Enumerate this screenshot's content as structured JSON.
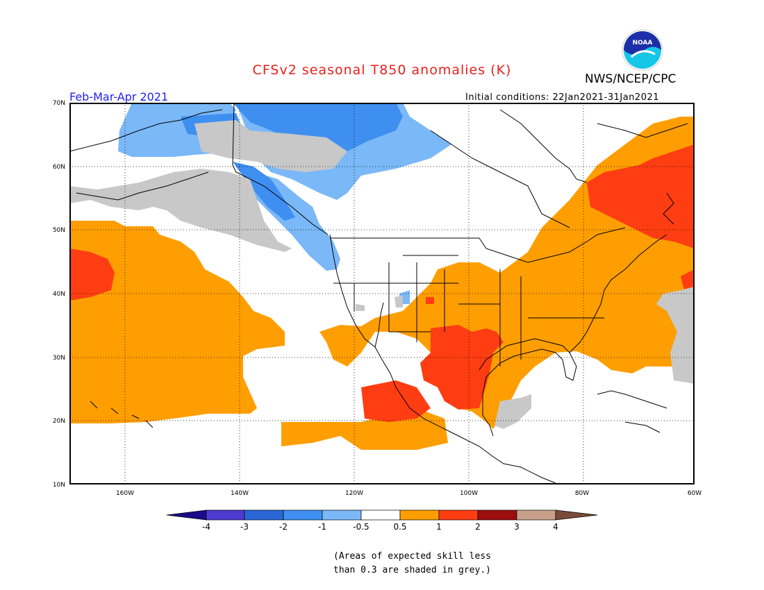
{
  "header": {
    "title": "CFSv2 seasonal T850 anomalies (K)",
    "org": "NWS/NCEP/CPC",
    "season": "Feb-Mar-Apr 2021",
    "initial_conditions": "Initial conditions: 22Jan2021-31Jan2021",
    "logo_text": "NOAA"
  },
  "map": {
    "extent": {
      "lon_min": -172,
      "lon_max": -60,
      "lat_min": 10,
      "lat_max": 70
    },
    "lat_labels": [
      "10N",
      "20N",
      "30N",
      "40N",
      "50N",
      "60N",
      "70N"
    ],
    "lon_labels": [
      "160W",
      "140W",
      "120W",
      "100W",
      "80W",
      "60W"
    ],
    "grid": "dotted"
  },
  "colorbar": {
    "ticks": [
      "-4",
      "-3",
      "-2",
      "-1",
      "-0.5",
      "0.5",
      "1",
      "2",
      "3",
      "4"
    ],
    "colors": [
      "#1a0b8a",
      "#4c3bcf",
      "#2a67d6",
      "#3f8ff0",
      "#7ab8f7",
      "#ffffff",
      "#ff9e00",
      "#ff3d12",
      "#9c0e0e",
      "#c8a08a",
      "#7a4b3a"
    ],
    "grey_color": "#c8c8c8"
  },
  "note": {
    "line1": "(Areas of expected skill less",
    "line2": "than 0.3 are shaded in grey.)"
  }
}
